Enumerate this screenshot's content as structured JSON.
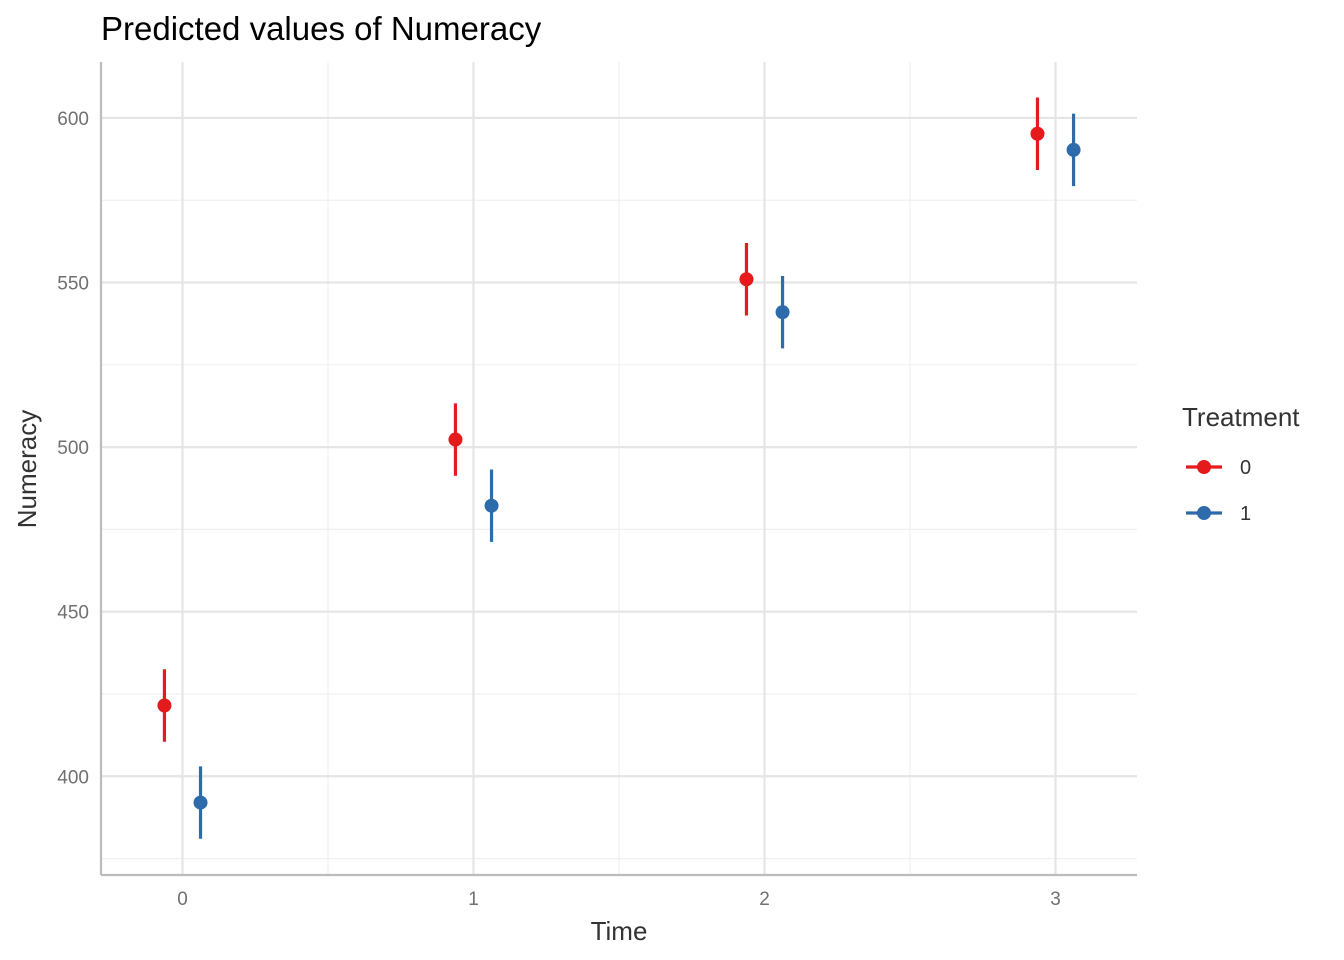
{
  "chart_data": {
    "type": "scatter",
    "title": "Predicted values of Numeracy",
    "xlabel": "Time",
    "ylabel": "Numeracy",
    "x_ticks": [
      "0",
      "1",
      "2",
      "3"
    ],
    "y_ticks": [
      "400",
      "450",
      "500",
      "550",
      "600"
    ],
    "xlim": [
      -0.28,
      3.28
    ],
    "ylim": [
      370,
      617
    ],
    "grid": true,
    "legend": {
      "title": "Treatment",
      "position": "right"
    },
    "series": [
      {
        "name": "0",
        "color": "#e41a1c",
        "points": [
          {
            "x": 0,
            "y": 421.5,
            "ymin": 410.5,
            "ymax": 432.5
          },
          {
            "x": 1,
            "y": 502.3,
            "ymin": 491.3,
            "ymax": 513.3
          },
          {
            "x": 2,
            "y": 551.0,
            "ymin": 540.0,
            "ymax": 562.0
          },
          {
            "x": 3,
            "y": 595.2,
            "ymin": 584.2,
            "ymax": 606.2
          }
        ]
      },
      {
        "name": "1",
        "color": "#2e6bab",
        "points": [
          {
            "x": 0,
            "y": 392.0,
            "ymin": 381.0,
            "ymax": 403.0
          },
          {
            "x": 1,
            "y": 482.2,
            "ymin": 471.2,
            "ymax": 493.2
          },
          {
            "x": 2,
            "y": 541.0,
            "ymin": 530.0,
            "ymax": 552.0
          },
          {
            "x": 3,
            "y": 590.3,
            "ymin": 579.3,
            "ymax": 601.3
          }
        ]
      }
    ]
  }
}
